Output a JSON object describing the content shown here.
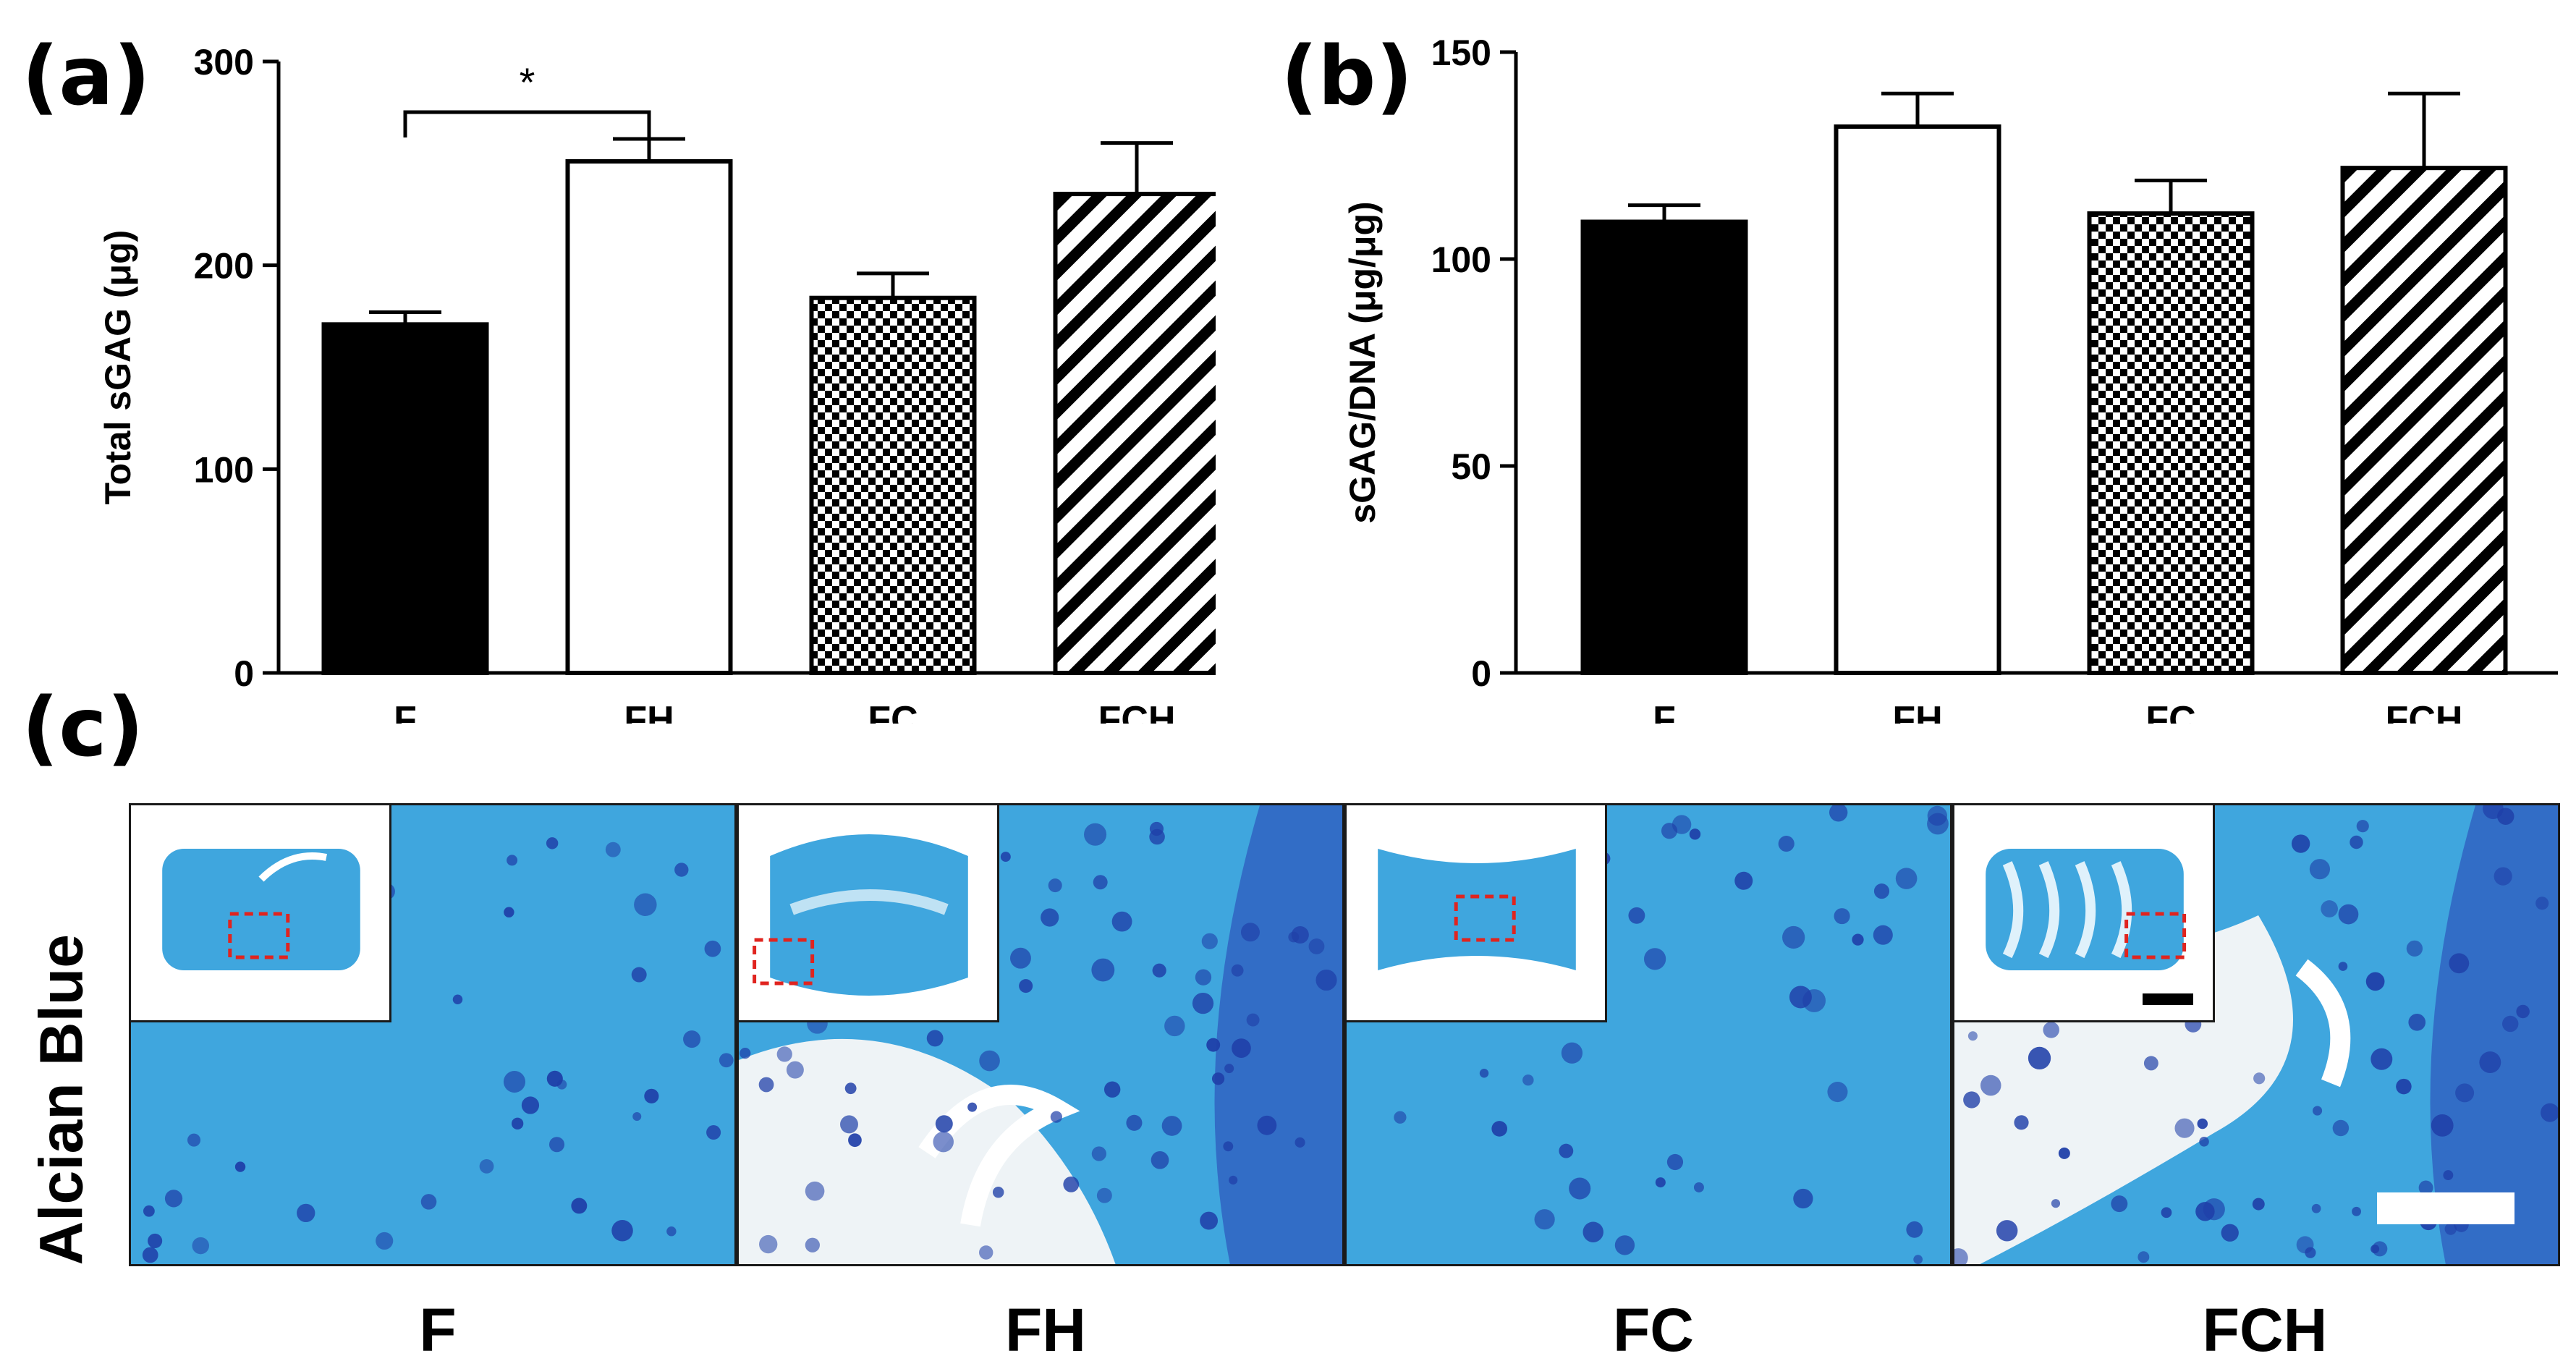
{
  "panels": {
    "a": {
      "label": "(a)"
    },
    "b": {
      "label": "(b)"
    },
    "c": {
      "label": "(c)"
    }
  },
  "colors": {
    "alcian_blue": "#3fa6de",
    "cell_dark": "#1f3fa8",
    "matrix_light": "#eef3f6",
    "roi_box": "#e0241f",
    "bar_solid": "#000000"
  },
  "chart_data": [
    {
      "type": "bar",
      "panel": "a",
      "categories": [
        "F",
        "FH",
        "FC",
        "FCH"
      ],
      "values": [
        171,
        251,
        184,
        235
      ],
      "errors": [
        6,
        11,
        12,
        25
      ],
      "fills": [
        "solid-black",
        "white",
        "checkerboard",
        "diagonal-stripes"
      ],
      "ylabel": "Total sGAG (μg)",
      "ylim": [
        0,
        300
      ],
      "yticks": [
        "0",
        "100",
        "200",
        "300"
      ],
      "annotation": {
        "text": "*",
        "between": [
          "F",
          "FH"
        ]
      }
    },
    {
      "type": "bar",
      "panel": "b",
      "categories": [
        "F",
        "FH",
        "FC",
        "FCH"
      ],
      "values": [
        109,
        132,
        111,
        122
      ],
      "errors": [
        4,
        8,
        8,
        18
      ],
      "fills": [
        "solid-black",
        "white",
        "checkerboard",
        "diagonal-stripes"
      ],
      "ylabel": "sGAG/DNA (μg/μg)",
      "ylim": [
        0,
        150
      ],
      "yticks": [
        "0",
        "50",
        "100",
        "150"
      ]
    }
  ],
  "histology": {
    "stain_label": "Alcian Blue",
    "groups": [
      "F",
      "FH",
      "FC",
      "FCH"
    ]
  }
}
